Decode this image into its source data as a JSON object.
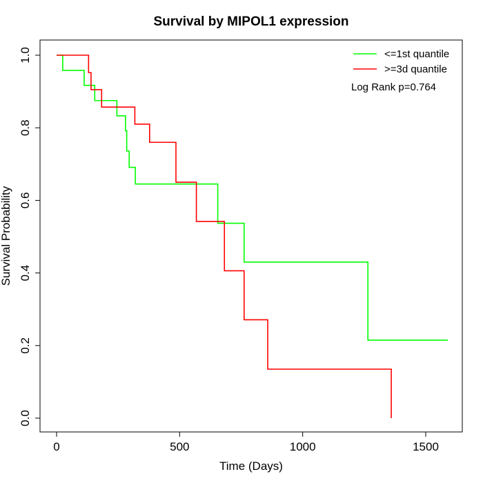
{
  "chart_data": {
    "type": "line",
    "title": "Survival by MIPOL1 expression",
    "xlabel": "Time (Days)",
    "ylabel": "Survival Probability",
    "xlim": [
      0,
      1650
    ],
    "ylim": [
      0,
      1
    ],
    "xticks": [
      0,
      500,
      1000,
      1500
    ],
    "xtick_labels": [
      "0",
      "500",
      "1000",
      "1500"
    ],
    "yticks": [
      0,
      0.2,
      0.4,
      0.6,
      0.8,
      1
    ],
    "ytick_labels": [
      "0.0",
      "0.2",
      "0.4",
      "0.6",
      "0.8",
      "1.0"
    ],
    "legend_position": "top-right",
    "annotation": "Log Rank p=0.764",
    "series": [
      {
        "name": "<=1st quantile",
        "color": "#00ff00",
        "x": [
          0,
          25,
          112,
          155,
          245,
          280,
          285,
          295,
          320,
          340,
          655,
          762,
          1265,
          1590
        ],
        "y": [
          1.0,
          0.958,
          0.917,
          0.875,
          0.833,
          0.792,
          0.736,
          0.691,
          0.645,
          0.645,
          0.537,
          0.43,
          0.215,
          0.215
        ]
      },
      {
        "name": ">=3d quantile",
        "color": "#ff0000",
        "x": [
          0,
          130,
          140,
          183,
          318,
          378,
          485,
          568,
          682,
          762,
          858,
          1360,
          1360
        ],
        "y": [
          1.0,
          0.952,
          0.905,
          0.857,
          0.81,
          0.76,
          0.65,
          0.542,
          0.406,
          0.271,
          0.135,
          0.135,
          0.0
        ]
      }
    ]
  }
}
